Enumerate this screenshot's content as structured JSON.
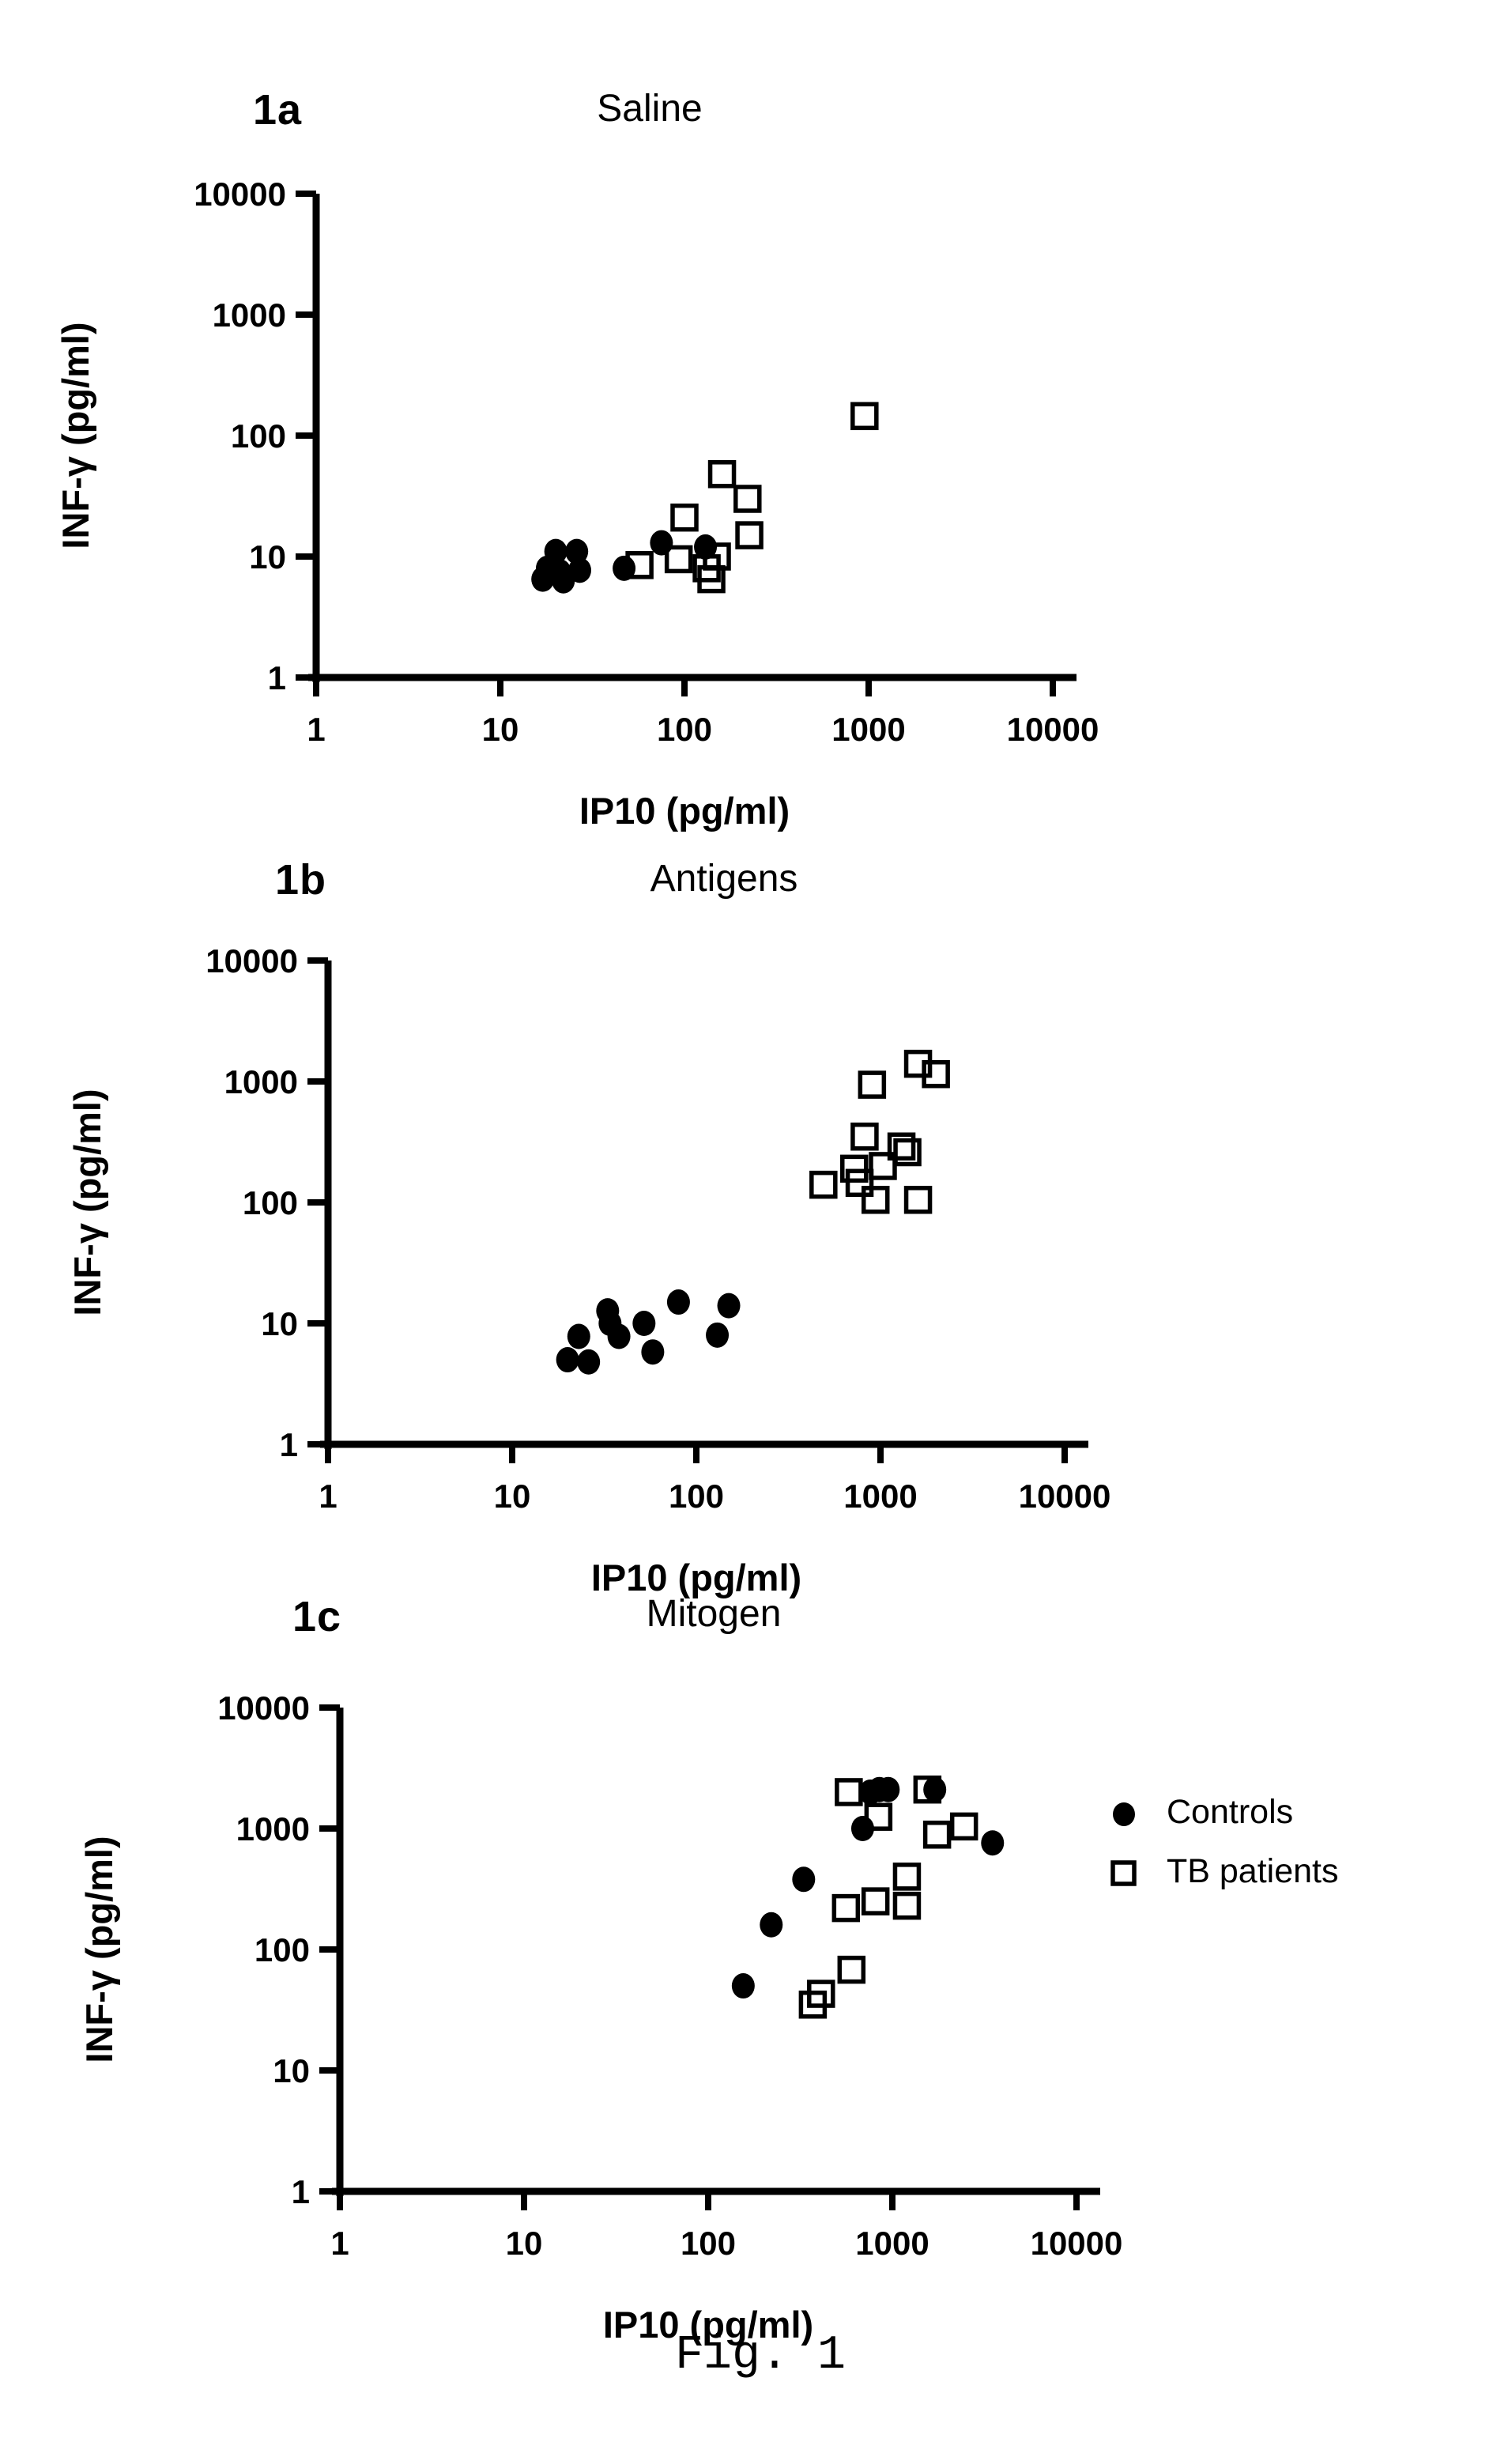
{
  "page": {
    "background": "#ffffff",
    "ink": "#000000"
  },
  "caption": "Fig. 1",
  "legend": {
    "items": [
      {
        "label": "Controls",
        "marker": "filled-circle"
      },
      {
        "label": "TB patients",
        "marker": "open-square"
      }
    ]
  },
  "chart_data": [
    {
      "id": "1a",
      "type": "scatter",
      "panel_label": "1a",
      "title": "Saline",
      "xlabel": "IP10 (pg/ml)",
      "ylabel": "INF-γ (pg/ml)",
      "xscale": "log",
      "yscale": "log",
      "xlim": [
        1,
        10000
      ],
      "ylim": [
        1,
        10000
      ],
      "xticks": [
        "1",
        "10",
        "100",
        "1000",
        "10000"
      ],
      "yticks": [
        "10000",
        "1000",
        "100",
        "10",
        "1"
      ],
      "grid": false,
      "series": [
        {
          "name": "Controls",
          "marker": "filled-circle",
          "points": [
            [
              17,
              6.5
            ],
            [
              18,
              8
            ],
            [
              20,
              11
            ],
            [
              21,
              7.5
            ],
            [
              22,
              6.3
            ],
            [
              26,
              11
            ],
            [
              27,
              7.7
            ],
            [
              47,
              8
            ],
            [
              75,
              13
            ],
            [
              130,
              12
            ]
          ]
        },
        {
          "name": "TB patients",
          "marker": "open-square",
          "points": [
            [
              57,
              8.5
            ],
            [
              93,
              9.5
            ],
            [
              100,
              21
            ],
            [
              132,
              8
            ],
            [
              140,
              6.5
            ],
            [
              150,
              10
            ],
            [
              160,
              48
            ],
            [
              220,
              30
            ],
            [
              225,
              15
            ],
            [
              950,
              145
            ]
          ]
        }
      ]
    },
    {
      "id": "1b",
      "type": "scatter",
      "panel_label": "1b",
      "title": "Antigens",
      "xlabel": "IP10 (pg/ml)",
      "ylabel": "INF-γ (pg/ml)",
      "xscale": "log",
      "yscale": "log",
      "xlim": [
        1,
        10000
      ],
      "ylim": [
        1,
        10000
      ],
      "xticks": [
        "1",
        "10",
        "100",
        "1000",
        "10000"
      ],
      "yticks": [
        "10000",
        "1000",
        "100",
        "10",
        "1"
      ],
      "grid": false,
      "series": [
        {
          "name": "Controls",
          "marker": "filled-circle",
          "points": [
            [
              20,
              5
            ],
            [
              23,
              7.8
            ],
            [
              26,
              4.8
            ],
            [
              33,
              12.7
            ],
            [
              34,
              10
            ],
            [
              38,
              7.8
            ],
            [
              52,
              10
            ],
            [
              58,
              5.8
            ],
            [
              80,
              15
            ],
            [
              130,
              8
            ],
            [
              150,
              14
            ]
          ]
        },
        {
          "name": "TB patients",
          "marker": "open-square",
          "points": [
            [
              490,
              140
            ],
            [
              720,
              190
            ],
            [
              770,
              145
            ],
            [
              820,
              350
            ],
            [
              900,
              940
            ],
            [
              940,
              105
            ],
            [
              1030,
              200
            ],
            [
              1300,
              290
            ],
            [
              1400,
              260
            ],
            [
              1600,
              105
            ],
            [
              1600,
              1400
            ],
            [
              2000,
              1150
            ]
          ]
        }
      ]
    },
    {
      "id": "1c",
      "type": "scatter",
      "panel_label": "1c",
      "title": "Mitogen",
      "xlabel": "IP10 (pg/ml)",
      "ylabel": "INF-γ (pg/ml)",
      "xscale": "log",
      "yscale": "log",
      "xlim": [
        1,
        10000
      ],
      "ylim": [
        1,
        10000
      ],
      "xticks": [
        "1",
        "10",
        "100",
        "1000",
        "10000"
      ],
      "yticks": [
        "10000",
        "1000",
        "100",
        "10",
        "1"
      ],
      "grid": false,
      "series": [
        {
          "name": "Controls",
          "marker": "filled-circle",
          "points": [
            [
              155,
              50
            ],
            [
              220,
              160
            ],
            [
              330,
              380
            ],
            [
              690,
              1000
            ],
            [
              760,
              2000
            ],
            [
              850,
              2100
            ],
            [
              950,
              2100
            ],
            [
              1700,
              2100
            ],
            [
              3500,
              760
            ]
          ]
        },
        {
          "name": "TB patients",
          "marker": "open-square",
          "points": [
            [
              370,
              35
            ],
            [
              410,
              43
            ],
            [
              560,
              220
            ],
            [
              580,
              2000
            ],
            [
              600,
              68
            ],
            [
              810,
              250
            ],
            [
              840,
              1250
            ],
            [
              1200,
              230
            ],
            [
              1200,
              400
            ],
            [
              1550,
              2100
            ],
            [
              1750,
              890
            ],
            [
              2450,
              1040
            ]
          ]
        }
      ]
    }
  ]
}
